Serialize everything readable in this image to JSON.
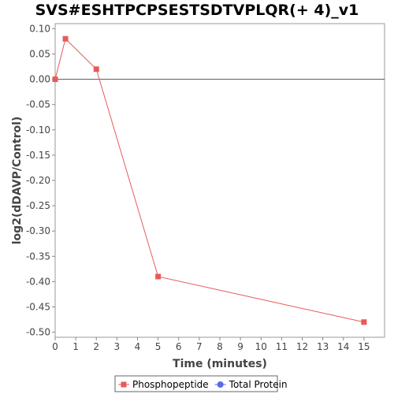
{
  "chart_data": {
    "type": "line",
    "title": "SVS#ESHTPCPSESTSDTVPLQR(+ 4)_v1",
    "xlabel": "Time (minutes)",
    "ylabel": "log2(dDAVP/Control)",
    "xlim": [
      0,
      16
    ],
    "ylim": [
      -0.51,
      0.11
    ],
    "x_ticks": [
      0,
      1,
      2,
      3,
      4,
      5,
      6,
      7,
      8,
      9,
      10,
      11,
      12,
      13,
      14,
      15
    ],
    "y_ticks": [
      0.1,
      0.05,
      0.0,
      -0.05,
      -0.1,
      -0.15,
      -0.2,
      -0.25,
      -0.3,
      -0.35,
      -0.4,
      -0.45,
      -0.5
    ],
    "zero_line": true,
    "grid": false,
    "legend_position": "bottom",
    "series": [
      {
        "name": "Phosphopeptide",
        "color": "#e85a5a",
        "marker": "square",
        "x": [
          0,
          0.5,
          2,
          5,
          15
        ],
        "y": [
          0.0,
          0.08,
          0.02,
          -0.39,
          -0.48
        ]
      },
      {
        "name": "Total Protein",
        "color": "#5a6ae8",
        "marker": "circle",
        "x": [],
        "y": []
      }
    ]
  }
}
